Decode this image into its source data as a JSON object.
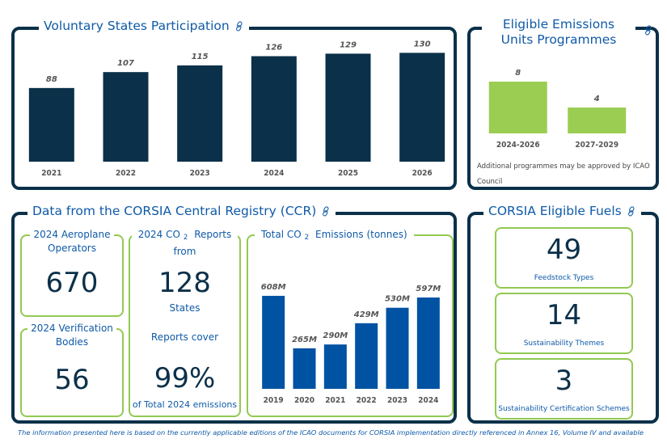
{
  "colors": {
    "navy": "#0b3049",
    "title_blue": "#0f5aa8",
    "green": "#92c952",
    "bar_green": "#9bcd52",
    "bar_blue": "#0052a3"
  },
  "icons": {
    "link": "link-icon"
  },
  "voluntary_states": {
    "title": "Voluntary States Participation"
  },
  "eligible_units": {
    "title_line1": "Eligible Emissions",
    "title_line2": "Units Programmes",
    "note": "Additional programmes may be approved by ICAO Council"
  },
  "ccr": {
    "title": "Data from the CORSIA Central Registry (CCR)",
    "operators": {
      "title_line1": "2024 Aeroplane",
      "title_line2": "Operators",
      "value": "670"
    },
    "verification": {
      "title_line1": "2024 Verification",
      "title_line2": "Bodies",
      "value": "56"
    },
    "reports": {
      "title_pre": "2024 CO",
      "title_sub": "2",
      "title_post": " Reports",
      "title_line2": "from",
      "value": "128",
      "value_caption": "States",
      "cover_label": "Reports cover",
      "cover_value": "99%",
      "cover_caption": "of Total 2024 emissions"
    },
    "emissions": {
      "title_pre": "Total CO",
      "title_sub": "2",
      "title_post": " Emissions (tonnes)"
    }
  },
  "fuels": {
    "title": "CORSIA Eligible Fuels",
    "items": [
      {
        "value": "49",
        "label": "Feedstock Types"
      },
      {
        "value": "14",
        "label": "Sustainability Themes"
      },
      {
        "value": "3",
        "label": "Sustainability Certification Schemes"
      }
    ]
  },
  "footer": "The information presented here is based on the currently applicable editions of the ICAO documents for CORSIA implementation directly referenced in Annex 16, Volume IV and available",
  "chart_data": [
    {
      "type": "bar",
      "title": "Voluntary States Participation",
      "categories": [
        "2021",
        "2022",
        "2023",
        "2024",
        "2025",
        "2026"
      ],
      "values": [
        88,
        107,
        115,
        126,
        129,
        130
      ],
      "labels": [
        "88",
        "107",
        "115",
        "126",
        "129",
        "130"
      ],
      "xlabel": "",
      "ylabel": "",
      "ylim": [
        0,
        140
      ],
      "grid": false,
      "color": "#0b3049"
    },
    {
      "type": "bar",
      "title": "Eligible Emissions Units Programmes",
      "categories": [
        "2024-2026",
        "2027-2029"
      ],
      "values": [
        8,
        4
      ],
      "labels": [
        "8",
        "4"
      ],
      "xlabel": "",
      "ylabel": "",
      "ylim": [
        0,
        10
      ],
      "grid": false,
      "color": "#9bcd52"
    },
    {
      "type": "bar",
      "title": "Total CO2 Emissions (tonnes)",
      "categories": [
        "2019",
        "2020",
        "2021",
        "2022",
        "2023",
        "2024"
      ],
      "values": [
        608,
        265,
        290,
        429,
        530,
        597
      ],
      "labels": [
        "608M",
        "265M",
        "290M",
        "429M",
        "530M",
        "597M"
      ],
      "unit": "million tonnes",
      "xlabel": "",
      "ylabel": "",
      "ylim": [
        0,
        650
      ],
      "grid": false,
      "color": "#0052a3"
    }
  ]
}
